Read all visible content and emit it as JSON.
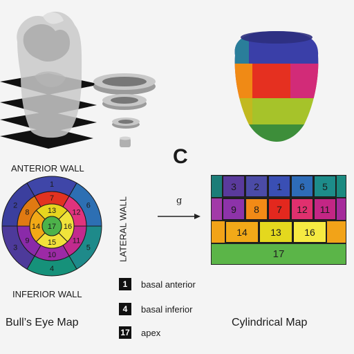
{
  "panel_letter": "C",
  "bullseye": {
    "anterior_label": "ANTERIOR WALL",
    "inferior_label": "INFERIOR WALL",
    "lateral_label": "LATERAL WALL",
    "caption": "Bull’s Eye Map",
    "outer_ring": [
      {
        "n": "1",
        "color": "#3f46a8"
      },
      {
        "n": "6",
        "color": "#2d6fb3"
      },
      {
        "n": "5",
        "color": "#1e8a8a"
      },
      {
        "n": "4",
        "color": "#16917a"
      },
      {
        "n": "3",
        "color": "#4d3a9a"
      },
      {
        "n": "2",
        "color": "#3b3f9e"
      }
    ],
    "middle_ring": [
      {
        "n": "7",
        "color": "#e23220"
      },
      {
        "n": "12",
        "color": "#e0337d"
      },
      {
        "n": "11",
        "color": "#c22a8e"
      },
      {
        "n": "10",
        "color": "#9c2aa6"
      },
      {
        "n": "9",
        "color": "#8a2aa9"
      },
      {
        "n": "8",
        "color": "#e07a12"
      }
    ],
    "inner_ring": [
      {
        "n": "13",
        "color": "#e6d51f"
      },
      {
        "n": "16",
        "color": "#f0e33b"
      },
      {
        "n": "15",
        "color": "#f2e13a"
      },
      {
        "n": "14",
        "color": "#f2a916"
      }
    ],
    "apex": {
      "n": "17",
      "color": "#4db24a"
    }
  },
  "arrow_label": "g",
  "legend": [
    {
      "key": "1",
      "text": "basal anterior"
    },
    {
      "key": "4",
      "text": "basal inferior"
    },
    {
      "key": "17",
      "text": "apex"
    }
  ],
  "cylindrical": {
    "caption": "Cylindrical Map",
    "row1": [
      {
        "n": "",
        "color": "#1c7d78"
      },
      {
        "n": "3",
        "color": "#5a3a9c"
      },
      {
        "n": "2",
        "color": "#4b4ba6"
      },
      {
        "n": "1",
        "color": "#3a4fb4"
      },
      {
        "n": "6",
        "color": "#2e6cb8"
      },
      {
        "n": "5",
        "color": "#1d8c8a"
      },
      {
        "n": "",
        "color": "#1a8a80"
      }
    ],
    "row2": [
      {
        "n": "",
        "color": "#a23aa8"
      },
      {
        "n": "9",
        "color": "#8d33a9"
      },
      {
        "n": "8",
        "color": "#f28a16"
      },
      {
        "n": "7",
        "color": "#e3281e"
      },
      {
        "n": "12",
        "color": "#e0306e"
      },
      {
        "n": "11",
        "color": "#c32685"
      },
      {
        "n": "",
        "color": "#a52b9b"
      }
    ],
    "row3": [
      {
        "n": "",
        "color": "#f2a318"
      },
      {
        "n": "14",
        "color": "#f2a918"
      },
      {
        "n": "13",
        "color": "#e4d81e"
      },
      {
        "n": "16",
        "color": "#f6ea42"
      },
      {
        "n": "",
        "color": "#f2a318"
      }
    ],
    "row4": {
      "n": "17",
      "color": "#5bb548"
    }
  }
}
